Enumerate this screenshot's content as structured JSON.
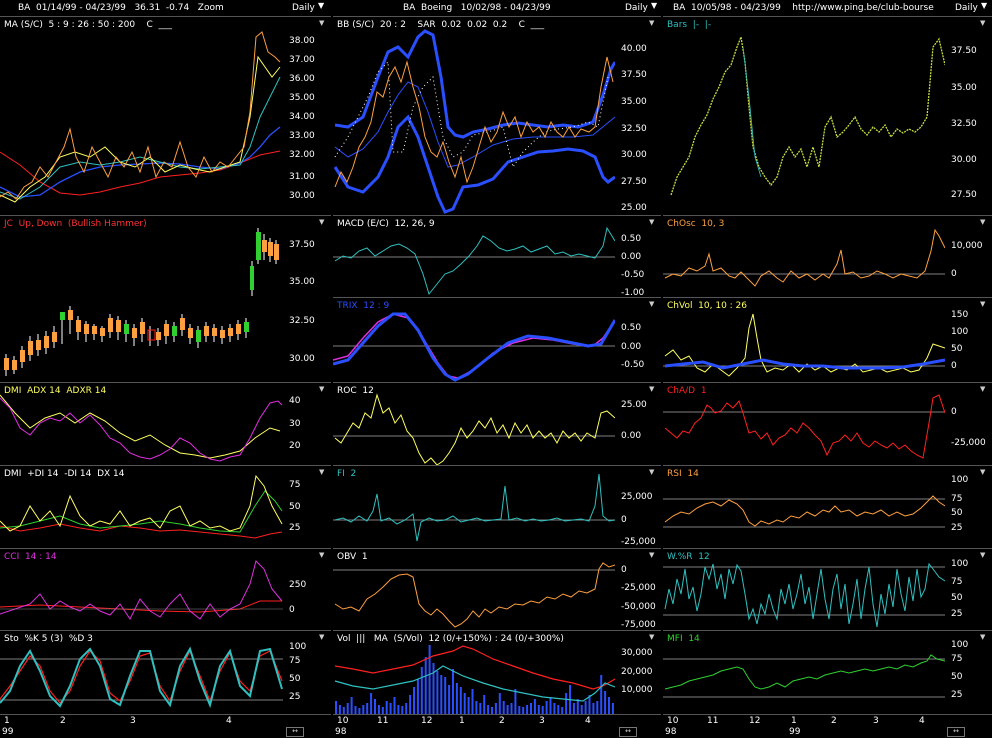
{
  "colors": {
    "background": "#000000",
    "blue": "#2a4fff",
    "orange": "#ffa040",
    "yellow": "#ffff60",
    "cyan": "#30c0c0",
    "red": "#ff2020",
    "magenta": "#e030e0",
    "green": "#30d030"
  },
  "columns": [
    {
      "header": {
        "title": "BA  01/14/99 - 04/23/99   36.31  -0.74   Zoom",
        "period": "Daily"
      },
      "panels": [
        {
          "label": "MA (S/C)  5 : 9 : 26 : 50 : 200    C  ___",
          "axis": [
            "38.00",
            "37.00",
            "36.00",
            "35.00",
            "34.00",
            "33.00",
            "32.00",
            "31.00",
            "30.00"
          ]
        },
        {
          "label": "JC  Up, Down  (Bullish Hammer)",
          "axis": [
            "37.50",
            "35.00",
            "32.50",
            "30.00"
          ]
        },
        {
          "label": "DMI  ADX 14  ADXR 14",
          "axis": [
            "40",
            "30",
            "20"
          ]
        },
        {
          "label": "DMI  +DI 14  -DI 14  DX 14",
          "axis": [
            "75",
            "50",
            "25"
          ]
        },
        {
          "label": "CCI  14 : 14",
          "axis": [
            "250",
            "0"
          ]
        },
        {
          "label": "Sto  %K 5 (3)  %D 3",
          "axis": [
            "100",
            "75",
            "50",
            "25"
          ]
        }
      ],
      "xaxis": {
        "ticks": [
          "1",
          "2",
          "3",
          "4"
        ],
        "year": "99"
      }
    },
    {
      "header": {
        "title": "BA  Boeing   10/02/98 - 04/23/99",
        "period": "Daily"
      },
      "panels": [
        {
          "label": "BB (S/C)  20 : 2    SAR  0.02  0.02  0.2    C  ___",
          "axis": [
            "40.00",
            "37.50",
            "35.00",
            "32.50",
            "30.00",
            "27.50",
            "25.00"
          ]
        },
        {
          "label": "MACD (E/C)  12, 26, 9",
          "axis": [
            "0.50",
            "0.00",
            "-0.50",
            "-1.00"
          ]
        },
        {
          "label": "TRIX  12 : 9",
          "axis": [
            "0.50",
            "0.00",
            "-0.50"
          ]
        },
        {
          "label": "ROC  12",
          "axis": [
            "25.00",
            "0.00"
          ]
        },
        {
          "label": "FI  2",
          "axis": [
            "25,000",
            "0",
            "-25,000"
          ]
        },
        {
          "label": "OBV  1",
          "axis": [
            "0",
            "-25,000",
            "-50,000",
            "-75,000"
          ]
        },
        {
          "label": "Vol  |||   MA  (S/Vol)  12 (0/+150%) : 24 (0/+300%)",
          "axis": [
            "30,000",
            "20,000",
            "10,000"
          ]
        }
      ],
      "xaxis": {
        "ticks": [
          "10",
          "11",
          "12",
          "1",
          "2",
          "3",
          "4"
        ],
        "year": "98"
      }
    },
    {
      "header": {
        "title": "BA  10/05/98 - 04/23/99    http://www.ping.be/club-bourse",
        "period": "Daily"
      },
      "panels": [
        {
          "label": "Bars  |-  |-",
          "axis": [
            "37.50",
            "35.00",
            "32.50",
            "30.00",
            "27.50"
          ]
        },
        {
          "label": "ChOsc  10, 3",
          "axis": [
            "10,000",
            "0"
          ]
        },
        {
          "label": "ChVol  10, 10 : 26",
          "axis": [
            "150",
            "100",
            "50",
            "0"
          ]
        },
        {
          "label": "ChA/D  1",
          "axis": [
            "0",
            "-25,000"
          ]
        },
        {
          "label": "RSI  14",
          "axis": [
            "100",
            "75",
            "50",
            "25"
          ]
        },
        {
          "label": "W.%R  12",
          "axis": [
            "100",
            "75",
            "50",
            "25"
          ]
        },
        {
          "label": "MFI  14",
          "axis": [
            "100",
            "75",
            "50",
            "25"
          ]
        }
      ],
      "xaxis": {
        "ticks": [
          "10",
          "11",
          "12",
          "1",
          "2",
          "3",
          "4"
        ],
        "year": "98",
        "year2": "99"
      }
    }
  ]
}
